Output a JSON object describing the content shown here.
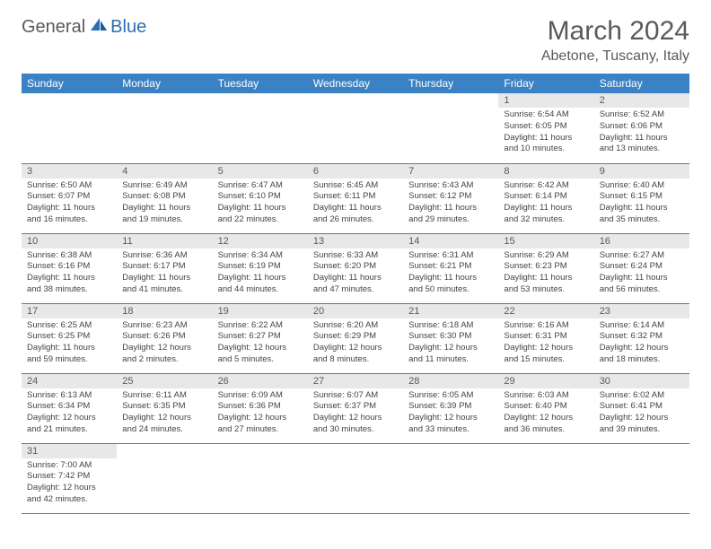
{
  "logo": {
    "general": "General",
    "blue": "Blue"
  },
  "title": "March 2024",
  "location": "Abetone, Tuscany, Italy",
  "colors": {
    "header_bg": "#3b82c4",
    "header_text": "#ffffff",
    "daynum_bg": "#e8e8e8",
    "text": "#5a5a5a",
    "row_border": "#3b82c4"
  },
  "day_headers": [
    "Sunday",
    "Monday",
    "Tuesday",
    "Wednesday",
    "Thursday",
    "Friday",
    "Saturday"
  ],
  "weeks": [
    [
      null,
      null,
      null,
      null,
      null,
      {
        "n": "1",
        "sr": "Sunrise: 6:54 AM",
        "ss": "Sunset: 6:05 PM",
        "d1": "Daylight: 11 hours",
        "d2": "and 10 minutes."
      },
      {
        "n": "2",
        "sr": "Sunrise: 6:52 AM",
        "ss": "Sunset: 6:06 PM",
        "d1": "Daylight: 11 hours",
        "d2": "and 13 minutes."
      }
    ],
    [
      {
        "n": "3",
        "sr": "Sunrise: 6:50 AM",
        "ss": "Sunset: 6:07 PM",
        "d1": "Daylight: 11 hours",
        "d2": "and 16 minutes."
      },
      {
        "n": "4",
        "sr": "Sunrise: 6:49 AM",
        "ss": "Sunset: 6:08 PM",
        "d1": "Daylight: 11 hours",
        "d2": "and 19 minutes."
      },
      {
        "n": "5",
        "sr": "Sunrise: 6:47 AM",
        "ss": "Sunset: 6:10 PM",
        "d1": "Daylight: 11 hours",
        "d2": "and 22 minutes."
      },
      {
        "n": "6",
        "sr": "Sunrise: 6:45 AM",
        "ss": "Sunset: 6:11 PM",
        "d1": "Daylight: 11 hours",
        "d2": "and 26 minutes."
      },
      {
        "n": "7",
        "sr": "Sunrise: 6:43 AM",
        "ss": "Sunset: 6:12 PM",
        "d1": "Daylight: 11 hours",
        "d2": "and 29 minutes."
      },
      {
        "n": "8",
        "sr": "Sunrise: 6:42 AM",
        "ss": "Sunset: 6:14 PM",
        "d1": "Daylight: 11 hours",
        "d2": "and 32 minutes."
      },
      {
        "n": "9",
        "sr": "Sunrise: 6:40 AM",
        "ss": "Sunset: 6:15 PM",
        "d1": "Daylight: 11 hours",
        "d2": "and 35 minutes."
      }
    ],
    [
      {
        "n": "10",
        "sr": "Sunrise: 6:38 AM",
        "ss": "Sunset: 6:16 PM",
        "d1": "Daylight: 11 hours",
        "d2": "and 38 minutes."
      },
      {
        "n": "11",
        "sr": "Sunrise: 6:36 AM",
        "ss": "Sunset: 6:17 PM",
        "d1": "Daylight: 11 hours",
        "d2": "and 41 minutes."
      },
      {
        "n": "12",
        "sr": "Sunrise: 6:34 AM",
        "ss": "Sunset: 6:19 PM",
        "d1": "Daylight: 11 hours",
        "d2": "and 44 minutes."
      },
      {
        "n": "13",
        "sr": "Sunrise: 6:33 AM",
        "ss": "Sunset: 6:20 PM",
        "d1": "Daylight: 11 hours",
        "d2": "and 47 minutes."
      },
      {
        "n": "14",
        "sr": "Sunrise: 6:31 AM",
        "ss": "Sunset: 6:21 PM",
        "d1": "Daylight: 11 hours",
        "d2": "and 50 minutes."
      },
      {
        "n": "15",
        "sr": "Sunrise: 6:29 AM",
        "ss": "Sunset: 6:23 PM",
        "d1": "Daylight: 11 hours",
        "d2": "and 53 minutes."
      },
      {
        "n": "16",
        "sr": "Sunrise: 6:27 AM",
        "ss": "Sunset: 6:24 PM",
        "d1": "Daylight: 11 hours",
        "d2": "and 56 minutes."
      }
    ],
    [
      {
        "n": "17",
        "sr": "Sunrise: 6:25 AM",
        "ss": "Sunset: 6:25 PM",
        "d1": "Daylight: 11 hours",
        "d2": "and 59 minutes."
      },
      {
        "n": "18",
        "sr": "Sunrise: 6:23 AM",
        "ss": "Sunset: 6:26 PM",
        "d1": "Daylight: 12 hours",
        "d2": "and 2 minutes."
      },
      {
        "n": "19",
        "sr": "Sunrise: 6:22 AM",
        "ss": "Sunset: 6:27 PM",
        "d1": "Daylight: 12 hours",
        "d2": "and 5 minutes."
      },
      {
        "n": "20",
        "sr": "Sunrise: 6:20 AM",
        "ss": "Sunset: 6:29 PM",
        "d1": "Daylight: 12 hours",
        "d2": "and 8 minutes."
      },
      {
        "n": "21",
        "sr": "Sunrise: 6:18 AM",
        "ss": "Sunset: 6:30 PM",
        "d1": "Daylight: 12 hours",
        "d2": "and 11 minutes."
      },
      {
        "n": "22",
        "sr": "Sunrise: 6:16 AM",
        "ss": "Sunset: 6:31 PM",
        "d1": "Daylight: 12 hours",
        "d2": "and 15 minutes."
      },
      {
        "n": "23",
        "sr": "Sunrise: 6:14 AM",
        "ss": "Sunset: 6:32 PM",
        "d1": "Daylight: 12 hours",
        "d2": "and 18 minutes."
      }
    ],
    [
      {
        "n": "24",
        "sr": "Sunrise: 6:13 AM",
        "ss": "Sunset: 6:34 PM",
        "d1": "Daylight: 12 hours",
        "d2": "and 21 minutes."
      },
      {
        "n": "25",
        "sr": "Sunrise: 6:11 AM",
        "ss": "Sunset: 6:35 PM",
        "d1": "Daylight: 12 hours",
        "d2": "and 24 minutes."
      },
      {
        "n": "26",
        "sr": "Sunrise: 6:09 AM",
        "ss": "Sunset: 6:36 PM",
        "d1": "Daylight: 12 hours",
        "d2": "and 27 minutes."
      },
      {
        "n": "27",
        "sr": "Sunrise: 6:07 AM",
        "ss": "Sunset: 6:37 PM",
        "d1": "Daylight: 12 hours",
        "d2": "and 30 minutes."
      },
      {
        "n": "28",
        "sr": "Sunrise: 6:05 AM",
        "ss": "Sunset: 6:39 PM",
        "d1": "Daylight: 12 hours",
        "d2": "and 33 minutes."
      },
      {
        "n": "29",
        "sr": "Sunrise: 6:03 AM",
        "ss": "Sunset: 6:40 PM",
        "d1": "Daylight: 12 hours",
        "d2": "and 36 minutes."
      },
      {
        "n": "30",
        "sr": "Sunrise: 6:02 AM",
        "ss": "Sunset: 6:41 PM",
        "d1": "Daylight: 12 hours",
        "d2": "and 39 minutes."
      }
    ],
    [
      {
        "n": "31",
        "sr": "Sunrise: 7:00 AM",
        "ss": "Sunset: 7:42 PM",
        "d1": "Daylight: 12 hours",
        "d2": "and 42 minutes."
      },
      null,
      null,
      null,
      null,
      null,
      null
    ]
  ]
}
